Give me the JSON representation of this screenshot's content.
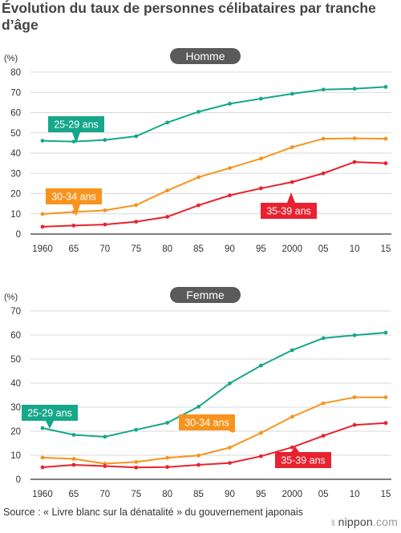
{
  "title": "Évolution du taux de personnes célibataires par tranche d’âge",
  "source": "Source : « Livre blanc sur la dénatalité » du gouvernement japonais",
  "brand": {
    "name": "nippon",
    "tld": ".com"
  },
  "colors": {
    "s1": "#16a78a",
    "s2": "#f7941d",
    "s3": "#e8222e",
    "grid": "#d9d9d9",
    "axis": "#333333",
    "pill": "#5a5a5a"
  },
  "chart_data": [
    {
      "type": "line",
      "title": "Homme",
      "ylabel": "(%)",
      "ylim": [
        0,
        80
      ],
      "yticks": [
        0,
        10,
        20,
        30,
        40,
        50,
        60,
        70,
        80
      ],
      "x": [
        1960,
        1965,
        1970,
        1975,
        1980,
        1985,
        1990,
        1995,
        2000,
        2005,
        2010,
        2015
      ],
      "xticklabels": [
        "1960",
        "65",
        "70",
        "75",
        "80",
        "85",
        "90",
        "95",
        "2000",
        "05",
        "10",
        "15"
      ],
      "grid": true,
      "series": [
        {
          "name": "25-29 ans",
          "color": "#16a78a",
          "values": [
            46.1,
            45.7,
            46.5,
            48.3,
            55.1,
            60.4,
            64.4,
            66.9,
            69.3,
            71.4,
            71.8,
            72.7
          ]
        },
        {
          "name": "30-34 ans",
          "color": "#f7941d",
          "values": [
            9.9,
            10.9,
            11.7,
            14.3,
            21.5,
            28.1,
            32.6,
            37.3,
            42.9,
            47.1,
            47.3,
            47.1
          ]
        },
        {
          "name": "35-39 ans",
          "color": "#e8222e",
          "values": [
            3.6,
            4.2,
            4.7,
            6.1,
            8.5,
            14.2,
            19.1,
            22.6,
            25.7,
            30.0,
            35.6,
            35.0
          ]
        }
      ]
    },
    {
      "type": "line",
      "title": "Femme",
      "ylabel": "(%)",
      "ylim": [
        0,
        70
      ],
      "yticks": [
        0,
        10,
        20,
        30,
        40,
        50,
        60,
        70
      ],
      "x": [
        1960,
        1965,
        1970,
        1975,
        1980,
        1985,
        1990,
        1995,
        2000,
        2005,
        2010,
        2015
      ],
      "xticklabels": [
        "1960",
        "65",
        "70",
        "75",
        "80",
        "85",
        "90",
        "95",
        "2000",
        "05",
        "10",
        "15"
      ],
      "grid": true,
      "series": [
        {
          "name": "25-29 ans",
          "color": "#16a78a",
          "values": [
            21.3,
            18.5,
            17.7,
            20.6,
            23.5,
            30.2,
            39.9,
            47.3,
            53.7,
            58.7,
            59.9,
            61.0
          ]
        },
        {
          "name": "30-34 ans",
          "color": "#f7941d",
          "values": [
            9.0,
            8.5,
            6.5,
            7.2,
            8.9,
            9.9,
            13.2,
            19.3,
            26.0,
            31.6,
            34.1,
            34.1
          ]
        },
        {
          "name": "35-39 ans",
          "color": "#e8222e",
          "values": [
            5.0,
            6.0,
            5.5,
            4.9,
            5.1,
            6.0,
            6.8,
            9.6,
            13.3,
            18.1,
            22.6,
            23.4
          ]
        }
      ]
    }
  ]
}
